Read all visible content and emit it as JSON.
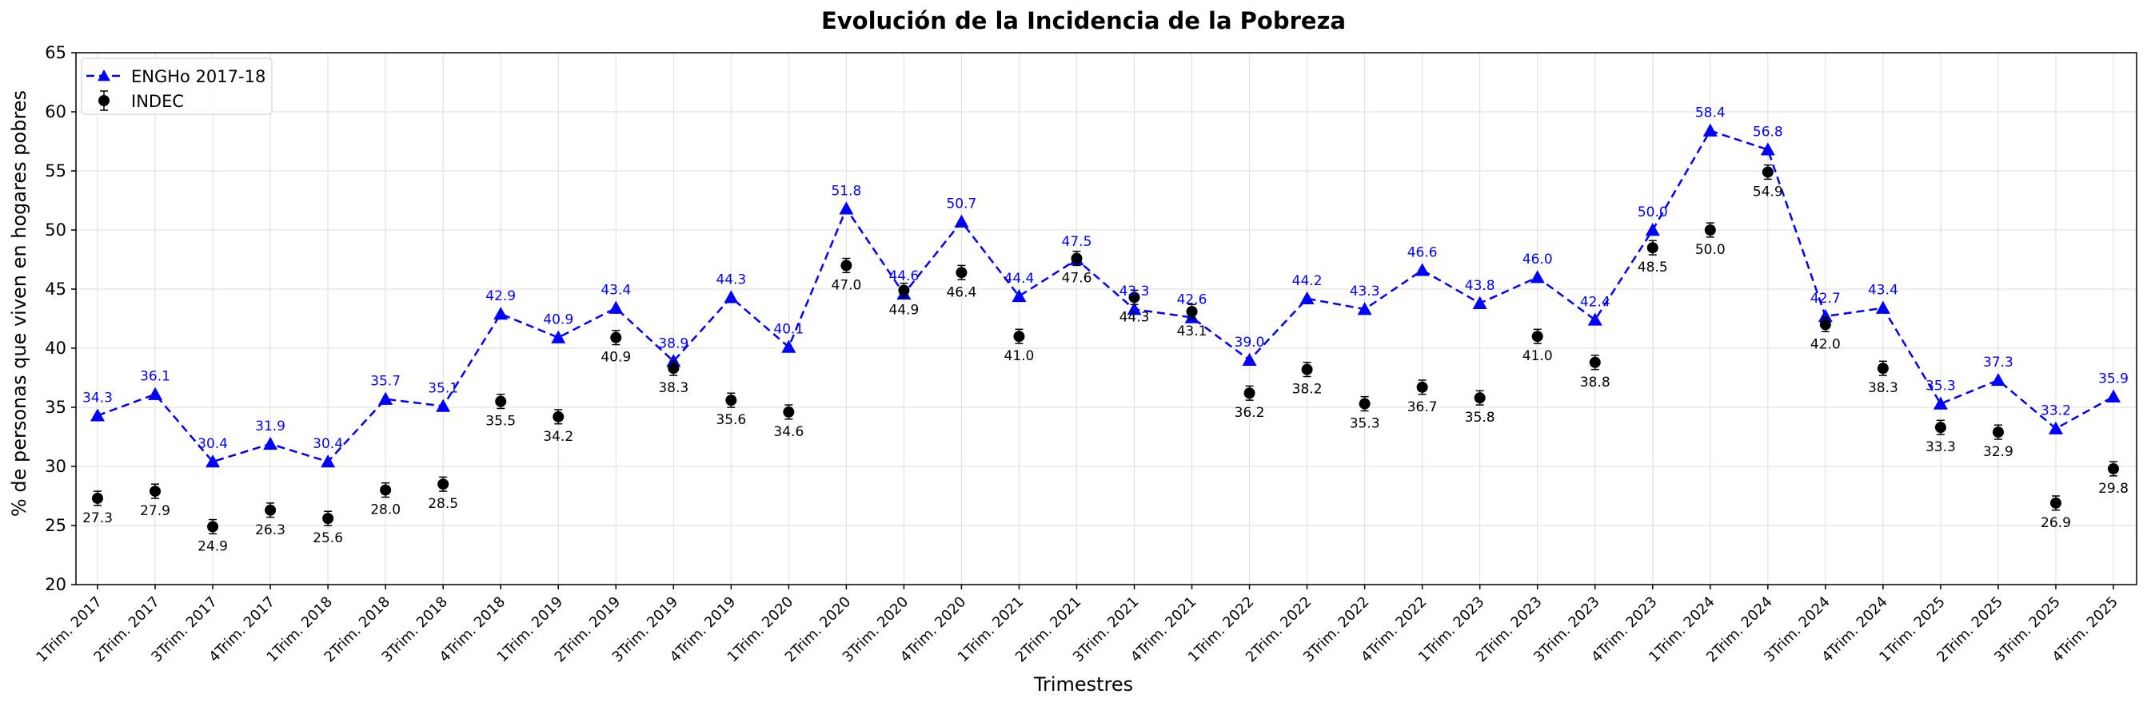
{
  "chart_data": {
    "type": "line",
    "title": "Evolución de la Incidencia de la Pobreza",
    "xlabel": "Trimestres",
    "ylabel": "% de personas que viven en hogares pobres",
    "ylim": [
      20,
      65
    ],
    "yticks": [
      "20",
      "25",
      "30",
      "35",
      "40",
      "45",
      "50",
      "55",
      "60",
      "65"
    ],
    "grid": true,
    "legend_position": "top-left",
    "categories": [
      "1Trim. 2017",
      "2Trim. 2017",
      "3Trim. 2017",
      "4Trim. 2017",
      "1Trim. 2018",
      "2Trim. 2018",
      "3Trim. 2018",
      "4Trim. 2018",
      "1Trim. 2019",
      "2Trim. 2019",
      "3Trim. 2019",
      "4Trim. 2019",
      "1Trim. 2020",
      "2Trim. 2020",
      "3Trim. 2020",
      "4Trim. 2020",
      "1Trim. 2021",
      "2Trim. 2021",
      "3Trim. 2021",
      "4Trim. 2021",
      "1Trim. 2022",
      "2Trim. 2022",
      "3Trim. 2022",
      "4Trim. 2022",
      "1Trim. 2023",
      "2Trim. 2023",
      "3Trim. 2023",
      "4Trim. 2023",
      "1Trim. 2024",
      "2Trim. 2024",
      "3Trim. 2024",
      "4Trim. 2024",
      "1Trim. 2025",
      "2Trim. 2025",
      "3Trim. 2025",
      "4Trim. 2025"
    ],
    "series": [
      {
        "name": "ENGHo 2017-18",
        "color": "#0000ff",
        "style": "dashed-line-triangle",
        "values": [
          34.3,
          36.1,
          30.4,
          31.9,
          30.4,
          35.7,
          35.1,
          42.9,
          40.9,
          43.4,
          38.9,
          44.3,
          40.1,
          51.8,
          44.6,
          50.7,
          44.4,
          47.5,
          43.3,
          42.6,
          39.0,
          44.2,
          43.3,
          46.6,
          43.8,
          46.0,
          42.4,
          50.0,
          58.4,
          56.8,
          42.7,
          43.4,
          35.3,
          37.3,
          33.2,
          35.9
        ]
      },
      {
        "name": "INDEC",
        "color": "#000000",
        "style": "errorbar-circle",
        "values": [
          27.3,
          27.9,
          24.9,
          26.3,
          25.6,
          28.0,
          28.5,
          35.5,
          34.2,
          40.9,
          38.3,
          35.6,
          34.6,
          47.0,
          44.9,
          46.4,
          41.0,
          47.6,
          44.3,
          43.1,
          36.2,
          38.2,
          35.3,
          36.7,
          35.8,
          41.0,
          38.8,
          48.5,
          50.0,
          54.9,
          42.0,
          38.3,
          33.3,
          32.9,
          26.9,
          29.8
        ],
        "error": 0.6
      }
    ]
  }
}
